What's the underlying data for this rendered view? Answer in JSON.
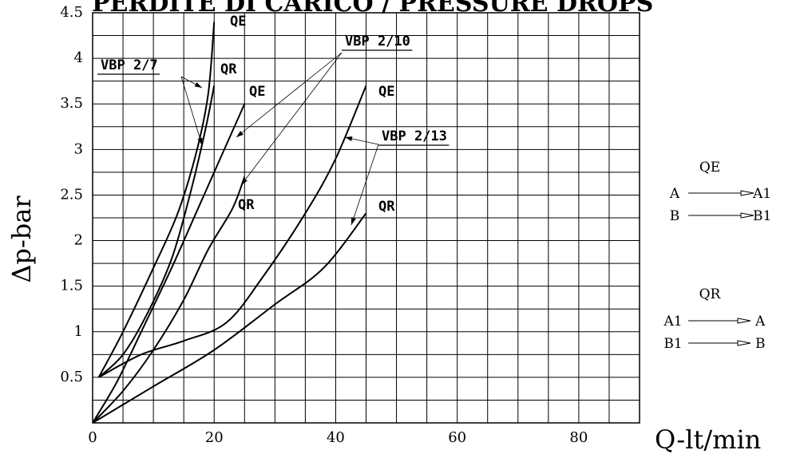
{
  "chart_data": {
    "type": "line",
    "title": "PERDITE DI CARICO / PRESSURE DROPS",
    "xlabel": "Q-lt/min",
    "ylabel": "Δp-bar",
    "xlim": [
      0,
      90
    ],
    "ylim": [
      0,
      4.5
    ],
    "x_ticks": [
      "0",
      "20",
      "40",
      "60",
      "80"
    ],
    "y_ticks": [
      "0.5",
      "1",
      "1.5",
      "2",
      "2.5",
      "3",
      "3.5",
      "4",
      "4.5"
    ],
    "grid": true,
    "series": [
      {
        "group": "VBP 2/7",
        "name": "QE",
        "points": [
          [
            1,
            0.5
          ],
          [
            5,
            1.0
          ],
          [
            10,
            1.7
          ],
          [
            14,
            2.3
          ],
          [
            17,
            2.95
          ],
          [
            19,
            3.6
          ],
          [
            20,
            4.4
          ]
        ]
      },
      {
        "group": "VBP 2/7",
        "name": "QR",
        "points": [
          [
            1,
            0.5
          ],
          [
            5,
            0.75
          ],
          [
            9,
            1.2
          ],
          [
            13,
            1.8
          ],
          [
            16,
            2.5
          ],
          [
            18.5,
            3.2
          ],
          [
            20,
            3.7
          ]
        ]
      },
      {
        "group": "VBP 2/10",
        "name": "QE",
        "points": [
          [
            0,
            0
          ],
          [
            4,
            0.45
          ],
          [
            8,
            1.0
          ],
          [
            13,
            1.7
          ],
          [
            17,
            2.3
          ],
          [
            21,
            2.9
          ],
          [
            25,
            3.5
          ]
        ]
      },
      {
        "group": "VBP 2/10",
        "name": "QR",
        "points": [
          [
            0,
            0
          ],
          [
            5,
            0.35
          ],
          [
            10,
            0.8
          ],
          [
            15,
            1.35
          ],
          [
            19,
            1.9
          ],
          [
            23,
            2.35
          ],
          [
            25,
            2.7
          ]
        ]
      },
      {
        "group": "VBP 2/13",
        "name": "QE",
        "points": [
          [
            1,
            0.5
          ],
          [
            8,
            0.75
          ],
          [
            15,
            0.9
          ],
          [
            22,
            1.1
          ],
          [
            28,
            1.6
          ],
          [
            35,
            2.3
          ],
          [
            40,
            2.9
          ],
          [
            45,
            3.7
          ]
        ]
      },
      {
        "group": "VBP 2/13",
        "name": "QR",
        "points": [
          [
            0,
            0
          ],
          [
            10,
            0.4
          ],
          [
            20,
            0.8
          ],
          [
            30,
            1.3
          ],
          [
            38,
            1.7
          ],
          [
            45,
            2.3
          ]
        ]
      }
    ],
    "annotations": [
      "VBP 2/7",
      "VBP 2/10",
      "VBP 2/13",
      "QE",
      "QR"
    ]
  },
  "legend": {
    "qe_title": "QE",
    "qe_rows": [
      {
        "from": "A",
        "to": "A1"
      },
      {
        "from": "B",
        "to": "B1"
      }
    ],
    "qr_title": "QR",
    "qr_rows": [
      {
        "from": "A1",
        "to": "A"
      },
      {
        "from": "B1",
        "to": "B"
      }
    ]
  }
}
